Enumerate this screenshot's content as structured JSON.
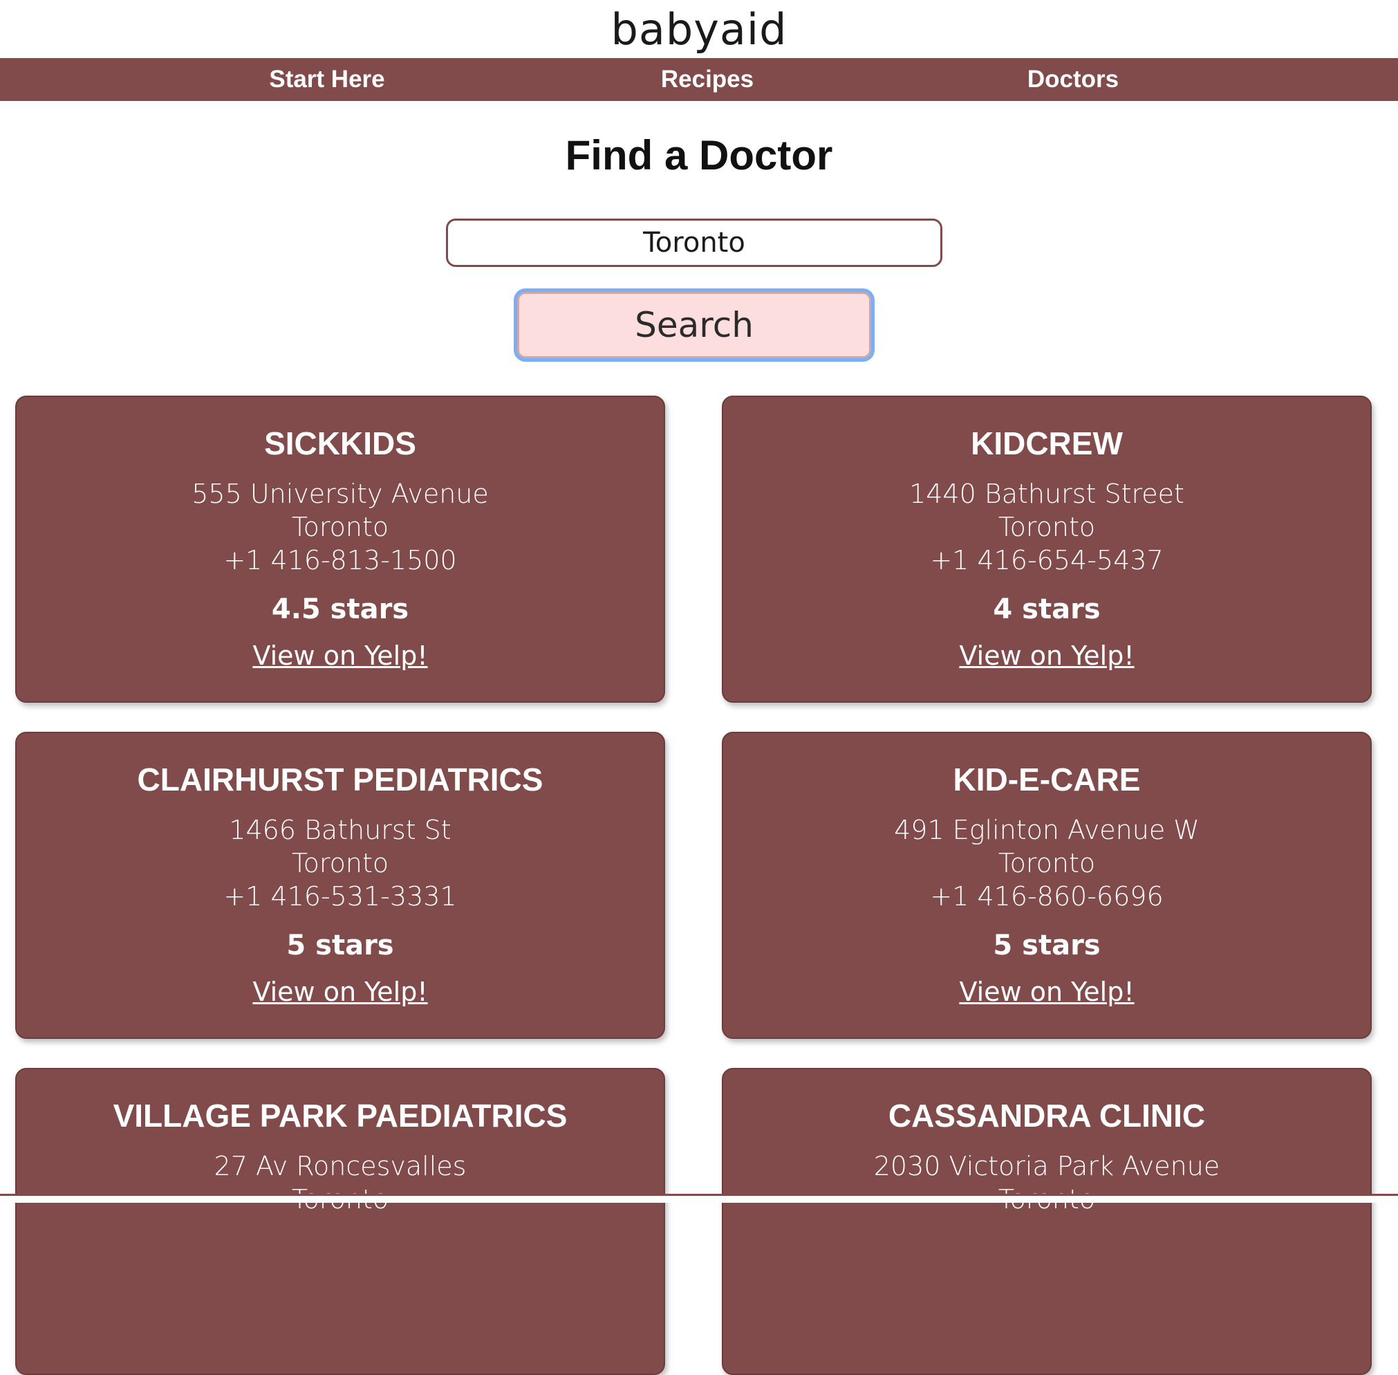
{
  "brand": {
    "logo_text": "babyaid"
  },
  "nav": {
    "items": [
      {
        "label": "Start Here"
      },
      {
        "label": "Recipes"
      },
      {
        "label": "Doctors"
      }
    ]
  },
  "page": {
    "title": "Find a Doctor"
  },
  "search": {
    "value": "Toronto",
    "button_label": "Search"
  },
  "colors": {
    "primary": "#804b4a",
    "button_bg": "#fddede",
    "focus_ring": "#7aaef5",
    "card_text": "#ffffff"
  },
  "results": [
    {
      "name": "SickKids",
      "address": "555 University Avenue",
      "city": "Toronto",
      "phone": "+1 416-813-1500",
      "rating": "4.5 stars",
      "link_label": "View on Yelp!"
    },
    {
      "name": "KidCrew",
      "address": "1440 Bathurst Street",
      "city": "Toronto",
      "phone": "+1 416-654-5437",
      "rating": "4 stars",
      "link_label": "View on Yelp!"
    },
    {
      "name": "Clairhurst Pediatrics",
      "address": "1466 Bathurst St",
      "city": "Toronto",
      "phone": "+1 416-531-3331",
      "rating": "5 stars",
      "link_label": "View on Yelp!"
    },
    {
      "name": "Kid-E-Care",
      "address": "491 Eglinton Avenue W",
      "city": "Toronto",
      "phone": "+1 416-860-6696",
      "rating": "5 stars",
      "link_label": "View on Yelp!"
    },
    {
      "name": "Village Park Paediatrics",
      "address": "27 Av Roncesvalles",
      "city": "Toronto",
      "phone": "",
      "rating": "",
      "link_label": ""
    },
    {
      "name": "Cassandra Clinic",
      "address": "2030 Victoria Park Avenue",
      "city": "Toronto",
      "phone": "",
      "rating": "",
      "link_label": ""
    }
  ]
}
